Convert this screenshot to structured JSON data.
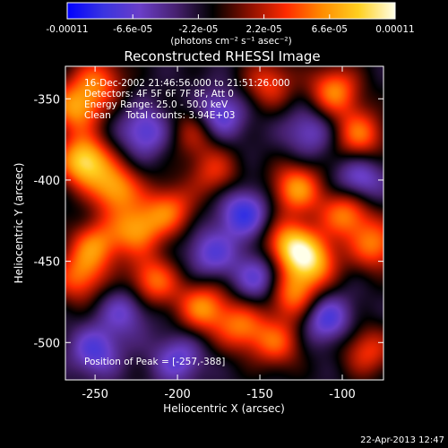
{
  "colorbar": {
    "tick_labels": [
      "-0.00011",
      "-6.6e-05",
      "-2.2e-05",
      "2.2e-05",
      "6.6e-05",
      "0.00011"
    ],
    "units": "(photons cm⁻² s⁻¹ asec⁻²)",
    "colors": [
      "#0000ff",
      "#3a34e0",
      "#6a3ec8",
      "#46206e",
      "#000000",
      "#8a1000",
      "#ff2a00",
      "#ff8c00",
      "#ffd020",
      "#ffffe8"
    ]
  },
  "chart_data": {
    "type": "heatmap",
    "title": "Reconstructed RHESSI Image",
    "xlabel": "Heliocentric X (arcsec)",
    "ylabel": "Heliocentric Y (arcsec)",
    "xlim": [
      -268,
      -75
    ],
    "ylim": [
      -523,
      -330
    ],
    "x_ticks": [
      -250,
      -200,
      -150,
      -100
    ],
    "y_ticks": [
      -350,
      -400,
      -450,
      -500
    ],
    "info_lines": [
      "16-Dec-2002 21:46:56.000 to 21:51:26.000",
      "Detectors: 4F 5F 6F 7F 8F, Att 0",
      "Energy Range: 25.0 - 50.0 keV",
      "Clean     Total counts: 3.94E+03"
    ],
    "peak_label": "Position of Peak = ",
    "peak_value": "[-257,-388]",
    "peak_position": [
      -257,
      -388
    ],
    "sources": [
      {
        "x": -257,
        "y": -388,
        "amp": 1.0
      },
      {
        "x": -238,
        "y": -405,
        "amp": 0.75
      },
      {
        "x": -225,
        "y": -430,
        "amp": 0.7
      },
      {
        "x": -205,
        "y": -418,
        "amp": 0.6
      },
      {
        "x": -250,
        "y": -440,
        "amp": 0.65
      },
      {
        "x": -260,
        "y": -460,
        "amp": 0.6
      },
      {
        "x": -215,
        "y": -462,
        "amp": 0.65
      },
      {
        "x": -185,
        "y": -478,
        "amp": 0.7
      },
      {
        "x": -162,
        "y": -490,
        "amp": 0.6
      },
      {
        "x": -140,
        "y": -500,
        "amp": 0.55
      },
      {
        "x": -130,
        "y": -470,
        "amp": 0.7
      },
      {
        "x": -118,
        "y": -450,
        "amp": 0.75
      },
      {
        "x": -132,
        "y": -440,
        "amp": 0.85
      },
      {
        "x": -128,
        "y": -405,
        "amp": 0.75
      },
      {
        "x": -98,
        "y": -420,
        "amp": 0.7
      },
      {
        "x": -80,
        "y": -440,
        "amp": 0.65
      },
      {
        "x": -105,
        "y": -345,
        "amp": 0.7
      },
      {
        "x": -90,
        "y": -372,
        "amp": 0.65
      },
      {
        "x": -145,
        "y": -340,
        "amp": 0.5
      },
      {
        "x": -178,
        "y": -395,
        "amp": 0.45
      },
      {
        "x": -190,
        "y": -370,
        "amp": 0.4
      },
      {
        "x": -262,
        "y": -355,
        "amp": 0.75
      },
      {
        "x": -248,
        "y": -338,
        "amp": 0.55
      },
      {
        "x": -85,
        "y": -505,
        "amp": 0.5
      },
      {
        "x": -175,
        "y": -360,
        "amp": -0.55
      },
      {
        "x": -220,
        "y": -370,
        "amp": -0.5
      },
      {
        "x": -160,
        "y": -420,
        "amp": -0.6
      },
      {
        "x": -180,
        "y": -445,
        "amp": -0.45
      },
      {
        "x": -110,
        "y": -485,
        "amp": -0.55
      },
      {
        "x": -250,
        "y": -505,
        "amp": -0.5
      },
      {
        "x": -200,
        "y": -510,
        "amp": -0.45
      },
      {
        "x": -150,
        "y": -460,
        "amp": -0.5
      },
      {
        "x": -90,
        "y": -400,
        "amp": -0.5
      },
      {
        "x": -120,
        "y": -370,
        "amp": -0.4
      },
      {
        "x": -232,
        "y": -480,
        "amp": -0.4
      }
    ]
  },
  "footer": {
    "date": "22-Apr-2013 12:47"
  }
}
